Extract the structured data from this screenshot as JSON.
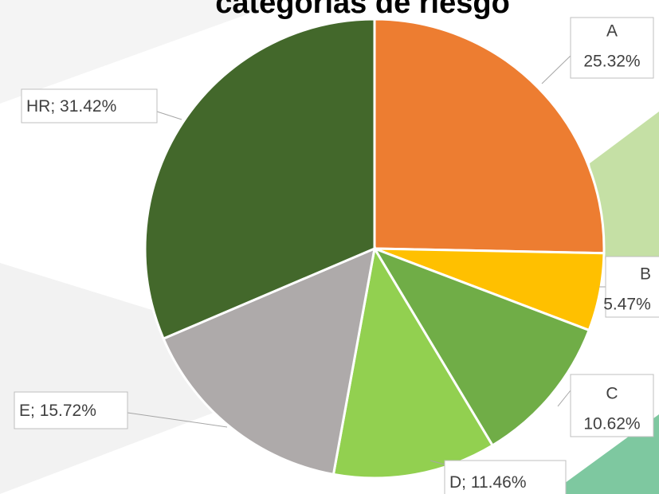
{
  "chart_data": {
    "type": "pie",
    "title": "categorías de riesgo",
    "categories": [
      "A",
      "B",
      "C",
      "D",
      "E",
      "HR"
    ],
    "values": [
      25.32,
      5.47,
      10.62,
      11.46,
      15.72,
      31.42
    ],
    "value_labels": [
      "25.32%",
      "5.47%",
      "10.62%",
      "11.46%",
      "15.72%",
      "31.42%"
    ],
    "label_separator": "; ",
    "colors": [
      "#ed7d31",
      "#ffc000",
      "#70ad47",
      "#92d050",
      "#aeaaaa",
      "#43682b"
    ]
  }
}
